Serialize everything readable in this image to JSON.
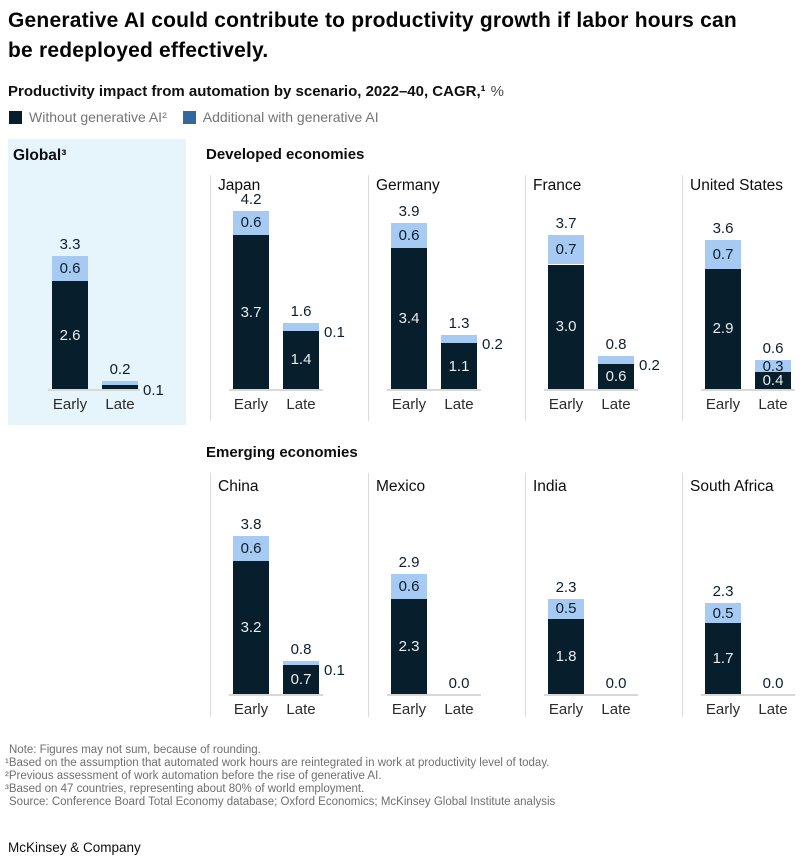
{
  "title": {
    "line1": "Generative AI could contribute to productivity growth if labor hours can",
    "line2": "be redeployed effectively."
  },
  "subtitle": {
    "main": "Productivity impact from automation by scenario, 2022–40, CAGR,¹",
    "suffix": "%"
  },
  "legend": [
    {
      "label": "Without generative AI²",
      "color": "#071F2D"
    },
    {
      "label": "Additional with generative AI",
      "color": "#31689E"
    }
  ],
  "colors": {
    "dark_navy": "#071F2D",
    "light_blue": "#A6CAF2",
    "global_panel_bg": "#E6F4FB",
    "baseline_gray": "#D8D8D8",
    "divider_gray": "#DBDBDB",
    "label_dark": "#0D1F2D",
    "label_light": "#E8ECEF",
    "category_label": "#2B2B2B"
  },
  "chart_data": {
    "type": "bar",
    "stacked": true,
    "title": "Productivity impact from automation by scenario, 2022–40, CAGR, %",
    "categories": [
      "Early",
      "Late"
    ],
    "series_names": [
      "Without generative AI",
      "Additional with generative AI"
    ],
    "ylim": [
      0,
      4.5
    ],
    "global": {
      "name": "Global³",
      "bars": [
        {
          "category": "Early",
          "total": 3.3,
          "without": 2.6,
          "additional": 0.6,
          "additional_label": "inside"
        },
        {
          "category": "Late",
          "total": 0.2,
          "without": 0.1,
          "additional": 0.1,
          "additional_label": "right",
          "without_label": false
        }
      ]
    },
    "groups": [
      {
        "title": "Developed economies",
        "panels": [
          {
            "name": "Japan",
            "bars": [
              {
                "category": "Early",
                "total": 4.2,
                "without": 3.7,
                "additional": 0.6,
                "additional_label": "inside"
              },
              {
                "category": "Late",
                "total": 1.6,
                "without": 1.4,
                "additional": 0.1,
                "additional_label": "right"
              }
            ]
          },
          {
            "name": "Germany",
            "bars": [
              {
                "category": "Early",
                "total": 3.9,
                "without": 3.4,
                "additional": 0.6,
                "additional_label": "inside"
              },
              {
                "category": "Late",
                "total": 1.3,
                "without": 1.1,
                "additional": 0.2,
                "additional_label": "right"
              }
            ]
          },
          {
            "name": "France",
            "bars": [
              {
                "category": "Early",
                "total": 3.7,
                "without": 3.0,
                "additional": 0.7,
                "additional_label": "inside"
              },
              {
                "category": "Late",
                "total": 0.8,
                "without": 0.6,
                "additional": 0.2,
                "additional_label": "right"
              }
            ]
          },
          {
            "name": "United States",
            "bars": [
              {
                "category": "Early",
                "total": 3.6,
                "without": 2.9,
                "additional": 0.7,
                "additional_label": "inside"
              },
              {
                "category": "Late",
                "total": 0.6,
                "without": 0.4,
                "additional": 0.3,
                "additional_label": "inside"
              }
            ]
          }
        ]
      },
      {
        "title": "Emerging economies",
        "panels": [
          {
            "name": "China",
            "bars": [
              {
                "category": "Early",
                "total": 3.8,
                "without": 3.2,
                "additional": 0.6,
                "additional_label": "inside"
              },
              {
                "category": "Late",
                "total": 0.8,
                "without": 0.7,
                "additional": 0.1,
                "additional_label": "right"
              }
            ]
          },
          {
            "name": "Mexico",
            "bars": [
              {
                "category": "Early",
                "total": 2.9,
                "without": 2.3,
                "additional": 0.6,
                "additional_label": "inside"
              },
              {
                "category": "Late",
                "total": 0
              }
            ]
          },
          {
            "name": "India",
            "bars": [
              {
                "category": "Early",
                "total": 2.3,
                "without": 1.8,
                "additional": 0.5,
                "additional_label": "inside"
              },
              {
                "category": "Late",
                "total": 0
              }
            ]
          },
          {
            "name": "South Africa",
            "bars": [
              {
                "category": "Early",
                "total": 2.3,
                "without": 1.7,
                "additional": 0.5,
                "additional_label": "inside"
              },
              {
                "category": "Late",
                "total": 0
              }
            ]
          }
        ]
      }
    ]
  },
  "footnotes": [
    "Note: Figures may not sum, because of rounding.",
    "¹Based on the assumption that automated work hours are reintegrated in work at productivity level of today.",
    "²Previous assessment of work automation before the rise of generative AI.",
    "³Based on 47 countries, representing about 80% of world employment.",
    "Source: Conference Board Total Economy database; Oxford Economics; McKinsey Global Institute analysis"
  ],
  "footer": "McKinsey & Company"
}
